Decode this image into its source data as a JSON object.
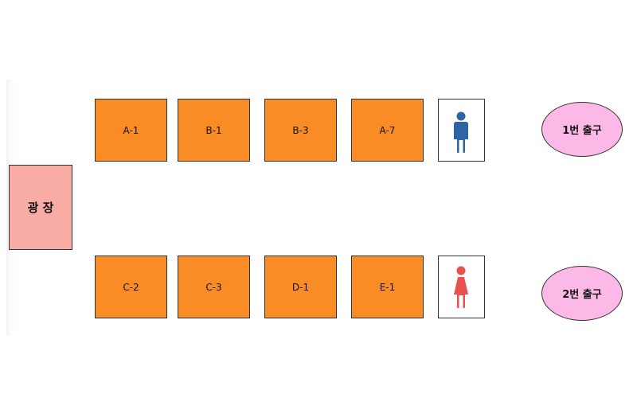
{
  "plaza": {
    "label": "광 장",
    "color": "#f9aca6"
  },
  "booths_top": [
    "A-1",
    "B-1",
    "B-3",
    "A-7"
  ],
  "booths_bottom": [
    "C-2",
    "C-3",
    "D-1",
    "E-1"
  ],
  "restrooms": {
    "men": {
      "icon": "male-person-icon",
      "color": "#2e63a6"
    },
    "women": {
      "icon": "female-person-icon",
      "color": "#e8524e"
    }
  },
  "exits": {
    "exit1": "1번 출구",
    "exit2": "2번 출구"
  },
  "colors": {
    "booth": "#fa8c26",
    "exit": "#fcb8e6"
  }
}
